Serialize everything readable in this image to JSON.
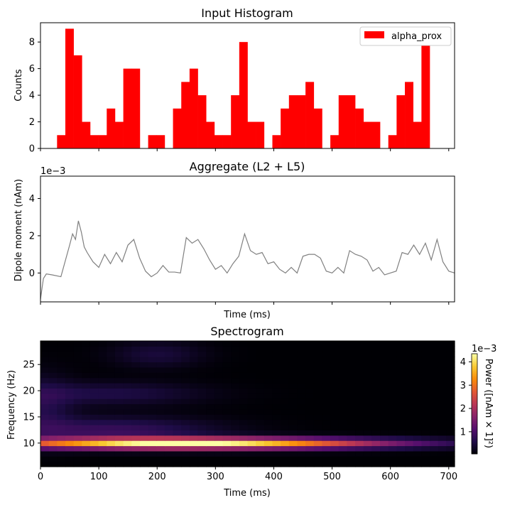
{
  "chart_data": [
    {
      "type": "bar",
      "title": "Input Histogram",
      "xlabel": "",
      "ylabel": "Counts",
      "xlim": [
        0,
        710
      ],
      "ylim": [
        0,
        9.45
      ],
      "yticks": [
        "0",
        "2",
        "4",
        "6",
        "8"
      ],
      "legend": {
        "placement": "top-right",
        "entries": [
          "alpha_prox"
        ]
      },
      "bin_width": 14.2,
      "series": [
        {
          "name": "alpha_prox",
          "color": "#ff0000",
          "values": [
            0,
            0,
            1,
            9,
            7,
            2,
            1,
            1,
            3,
            2,
            6,
            6,
            0,
            1,
            1,
            0,
            3,
            5,
            6,
            4,
            2,
            1,
            1,
            4,
            8,
            2,
            2,
            0,
            1,
            3,
            4,
            4,
            5,
            3,
            0,
            1,
            4,
            4,
            3,
            2,
            2,
            0,
            1,
            4,
            5,
            2,
            8,
            0,
            0,
            0
          ]
        }
      ]
    },
    {
      "type": "line",
      "title": "Aggregate (L2 + L5)",
      "xlabel": "Time (ms)",
      "ylabel": "Dipole moment (nAm)",
      "offset_text": "1e−3",
      "xlim": [
        0,
        710
      ],
      "ylim": [
        -1.55,
        5.2
      ],
      "yticks": [
        "0",
        "2",
        "4"
      ],
      "series": [
        {
          "name": "",
          "color": "#808080",
          "x": [
            0,
            5,
            10,
            20,
            35,
            50,
            55,
            60,
            65,
            70,
            75,
            80,
            90,
            100,
            110,
            120,
            130,
            140,
            150,
            160,
            170,
            180,
            190,
            200,
            210,
            220,
            230,
            240,
            250,
            260,
            270,
            280,
            290,
            300,
            310,
            320,
            330,
            340,
            350,
            360,
            370,
            380,
            390,
            400,
            410,
            420,
            430,
            440,
            450,
            460,
            470,
            480,
            490,
            500,
            510,
            520,
            530,
            540,
            550,
            560,
            570,
            580,
            590,
            600,
            610,
            620,
            630,
            640,
            650,
            660,
            670,
            680,
            690,
            700,
            710
          ],
          "y": [
            -1.4,
            -0.3,
            -0.05,
            -0.1,
            -0.2,
            1.5,
            2.1,
            1.8,
            2.8,
            2.2,
            1.4,
            1.1,
            0.6,
            0.3,
            1.0,
            0.5,
            1.1,
            0.6,
            1.5,
            1.8,
            0.8,
            0.1,
            -0.2,
            0.0,
            0.4,
            0.05,
            0.05,
            0.0,
            1.9,
            1.6,
            1.8,
            1.3,
            0.7,
            0.2,
            0.4,
            0.0,
            0.5,
            0.9,
            2.1,
            1.2,
            1.0,
            1.1,
            0.5,
            0.6,
            0.2,
            0.0,
            0.3,
            0.0,
            0.9,
            1.0,
            1.0,
            0.8,
            0.1,
            0.0,
            0.3,
            0.0,
            1.2,
            1.0,
            0.9,
            0.7,
            0.1,
            0.3,
            -0.1,
            0.0,
            0.1,
            1.1,
            1.0,
            1.5,
            1.0,
            1.6,
            0.7,
            1.8,
            0.6,
            0.1,
            0.0
          ]
        }
      ]
    },
    {
      "type": "heatmap",
      "title": "Spectrogram",
      "xlabel": "Time (ms)",
      "ylabel": "Frequency (Hz)",
      "xlim": [
        0,
        710
      ],
      "ylim": [
        5.5,
        29.5
      ],
      "xticks": [
        "0",
        "100",
        "200",
        "300",
        "400",
        "500",
        "600",
        "700"
      ],
      "yticks": [
        "10",
        "15",
        "20",
        "25"
      ],
      "colormap": "inferno",
      "colorbar": {
        "label": "Power ([nAm × 1]²)",
        "offset_text": "1e−3",
        "range": [
          0.05,
          4.35
        ],
        "ticks": [
          "1",
          "2",
          "3",
          "4"
        ]
      }
    }
  ]
}
